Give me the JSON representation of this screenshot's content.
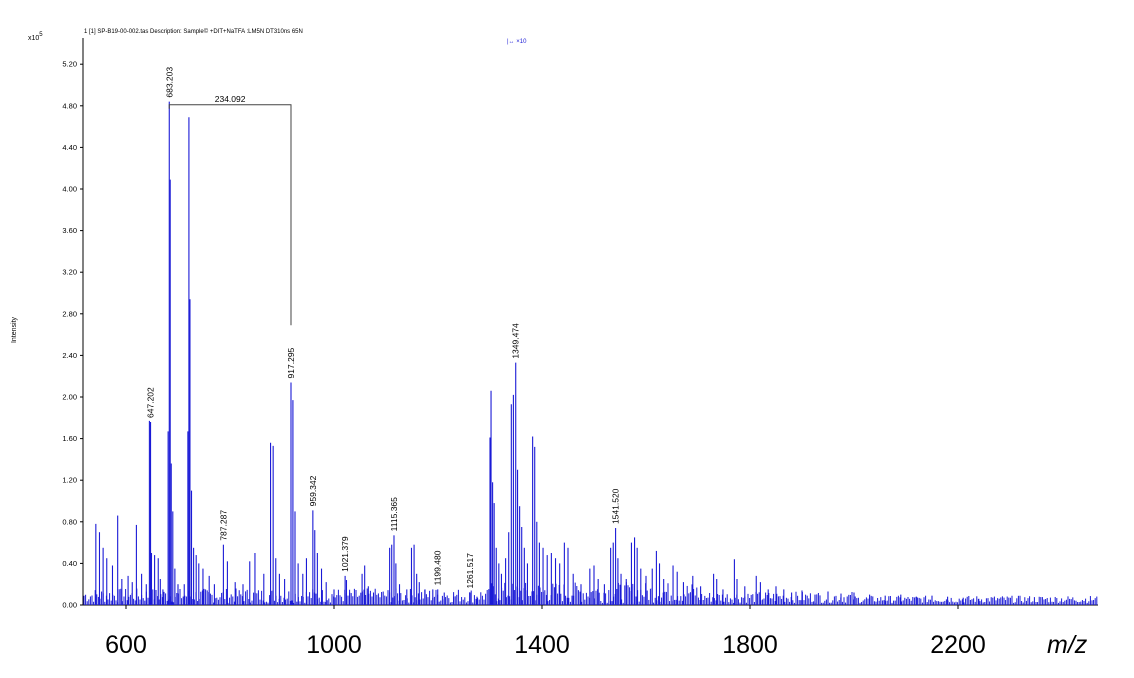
{
  "header": {
    "file_info": "1 [1] SP-B19-00-002.tas   Description: Sample© +DIT+NaTFA :LM5N DT310ns 65N",
    "scale_indicator": "|↔ ×10"
  },
  "chart_data": {
    "type": "line",
    "title": "",
    "xlabel": "m/z",
    "ylabel": "Intensity",
    "y_multiplier": "x10",
    "y_multiplier_exp": "5",
    "xlim": [
      540,
      2248
    ],
    "ylim": [
      0,
      5.4
    ],
    "x_ticks": [
      600,
      1000,
      1400,
      1800,
      2200
    ],
    "y_ticks": [
      "0.00",
      "0.40",
      "0.80",
      "1.20",
      "1.60",
      "2.00",
      "2.40",
      "2.80",
      "3.20",
      "3.60",
      "4.00",
      "4.40",
      "4.80",
      "5.20"
    ],
    "grid": false,
    "color": "#1a1ad6",
    "peaks": [
      {
        "x": 542,
        "y": 0.78
      },
      {
        "x": 549,
        "y": 0.7
      },
      {
        "x": 556,
        "y": 0.55
      },
      {
        "x": 563,
        "y": 0.45
      },
      {
        "x": 574,
        "y": 0.38
      },
      {
        "x": 584,
        "y": 0.86
      },
      {
        "x": 592,
        "y": 0.25
      },
      {
        "x": 604,
        "y": 0.28
      },
      {
        "x": 612,
        "y": 0.22
      },
      {
        "x": 620,
        "y": 0.77
      },
      {
        "x": 630,
        "y": 0.3
      },
      {
        "x": 639,
        "y": 0.2
      },
      {
        "x": 645,
        "y": 1.77
      },
      {
        "x": 647.202,
        "y": 1.76
      },
      {
        "x": 649,
        "y": 0.5
      },
      {
        "x": 655,
        "y": 0.48
      },
      {
        "x": 662,
        "y": 0.45
      },
      {
        "x": 666,
        "y": 0.25
      },
      {
        "x": 671,
        "y": 0.15
      },
      {
        "x": 681,
        "y": 1.67
      },
      {
        "x": 683.203,
        "y": 4.84
      },
      {
        "x": 685,
        "y": 4.09
      },
      {
        "x": 687,
        "y": 1.36
      },
      {
        "x": 690,
        "y": 0.9
      },
      {
        "x": 694,
        "y": 0.35
      },
      {
        "x": 700,
        "y": 0.2
      },
      {
        "x": 712,
        "y": 0.2
      },
      {
        "x": 719,
        "y": 1.67
      },
      {
        "x": 721,
        "y": 4.69
      },
      {
        "x": 723,
        "y": 2.94
      },
      {
        "x": 726,
        "y": 1.1
      },
      {
        "x": 730,
        "y": 0.55
      },
      {
        "x": 735,
        "y": 0.48
      },
      {
        "x": 740,
        "y": 0.4
      },
      {
        "x": 748,
        "y": 0.35
      },
      {
        "x": 760,
        "y": 0.28
      },
      {
        "x": 770,
        "y": 0.2
      },
      {
        "x": 787.287,
        "y": 0.58
      },
      {
        "x": 795,
        "y": 0.42
      },
      {
        "x": 810,
        "y": 0.22
      },
      {
        "x": 825,
        "y": 0.2
      },
      {
        "x": 838,
        "y": 0.42
      },
      {
        "x": 848,
        "y": 0.5
      },
      {
        "x": 865,
        "y": 0.3
      },
      {
        "x": 878,
        "y": 1.56
      },
      {
        "x": 883,
        "y": 1.53
      },
      {
        "x": 888,
        "y": 0.45
      },
      {
        "x": 895,
        "y": 0.3
      },
      {
        "x": 905,
        "y": 0.25
      },
      {
        "x": 917.295,
        "y": 2.14
      },
      {
        "x": 921,
        "y": 1.97
      },
      {
        "x": 925,
        "y": 0.9
      },
      {
        "x": 931,
        "y": 0.4
      },
      {
        "x": 940,
        "y": 0.3
      },
      {
        "x": 947,
        "y": 0.45
      },
      {
        "x": 959.342,
        "y": 0.91
      },
      {
        "x": 963,
        "y": 0.72
      },
      {
        "x": 968,
        "y": 0.5
      },
      {
        "x": 976,
        "y": 0.35
      },
      {
        "x": 985,
        "y": 0.22
      },
      {
        "x": 1000,
        "y": 0.15
      },
      {
        "x": 1021.379,
        "y": 0.28
      },
      {
        "x": 1024,
        "y": 0.24
      },
      {
        "x": 1030,
        "y": 0.12
      },
      {
        "x": 1054,
        "y": 0.3
      },
      {
        "x": 1059,
        "y": 0.38
      },
      {
        "x": 1066,
        "y": 0.18
      },
      {
        "x": 1076,
        "y": 0.12
      },
      {
        "x": 1107,
        "y": 0.55
      },
      {
        "x": 1111,
        "y": 0.58
      },
      {
        "x": 1115.365,
        "y": 0.67
      },
      {
        "x": 1119,
        "y": 0.4
      },
      {
        "x": 1126,
        "y": 0.2
      },
      {
        "x": 1140,
        "y": 0.15
      },
      {
        "x": 1149,
        "y": 0.55
      },
      {
        "x": 1154,
        "y": 0.58
      },
      {
        "x": 1159,
        "y": 0.3
      },
      {
        "x": 1164,
        "y": 0.22
      },
      {
        "x": 1175,
        "y": 0.15
      },
      {
        "x": 1190,
        "y": 0.15
      },
      {
        "x": 1199.48,
        "y": 0.15
      },
      {
        "x": 1212,
        "y": 0.12
      },
      {
        "x": 1230,
        "y": 0.08
      },
      {
        "x": 1261.517,
        "y": 0.12
      },
      {
        "x": 1275,
        "y": 0.08
      },
      {
        "x": 1300,
        "y": 1.61
      },
      {
        "x": 1302,
        "y": 2.06
      },
      {
        "x": 1305,
        "y": 1.18
      },
      {
        "x": 1308,
        "y": 0.98
      },
      {
        "x": 1312,
        "y": 0.55
      },
      {
        "x": 1317,
        "y": 0.4
      },
      {
        "x": 1322,
        "y": 0.3
      },
      {
        "x": 1330,
        "y": 0.45
      },
      {
        "x": 1336,
        "y": 0.7
      },
      {
        "x": 1341,
        "y": 1.93
      },
      {
        "x": 1345,
        "y": 2.02
      },
      {
        "x": 1349.474,
        "y": 2.33
      },
      {
        "x": 1353,
        "y": 1.3
      },
      {
        "x": 1357,
        "y": 0.95
      },
      {
        "x": 1361,
        "y": 0.75
      },
      {
        "x": 1366,
        "y": 0.55
      },
      {
        "x": 1372,
        "y": 0.4
      },
      {
        "x": 1382,
        "y": 1.62
      },
      {
        "x": 1386,
        "y": 1.52
      },
      {
        "x": 1390,
        "y": 0.8
      },
      {
        "x": 1395,
        "y": 0.6
      },
      {
        "x": 1402,
        "y": 0.55
      },
      {
        "x": 1410,
        "y": 0.48
      },
      {
        "x": 1418,
        "y": 0.5
      },
      {
        "x": 1426,
        "y": 0.45
      },
      {
        "x": 1434,
        "y": 0.4
      },
      {
        "x": 1443,
        "y": 0.6
      },
      {
        "x": 1450,
        "y": 0.55
      },
      {
        "x": 1460,
        "y": 0.3
      },
      {
        "x": 1475,
        "y": 0.2
      },
      {
        "x": 1492,
        "y": 0.35
      },
      {
        "x": 1500,
        "y": 0.38
      },
      {
        "x": 1508,
        "y": 0.25
      },
      {
        "x": 1520,
        "y": 0.2
      },
      {
        "x": 1532,
        "y": 0.55
      },
      {
        "x": 1537,
        "y": 0.6
      },
      {
        "x": 1541.52,
        "y": 0.74
      },
      {
        "x": 1546,
        "y": 0.45
      },
      {
        "x": 1552,
        "y": 0.3
      },
      {
        "x": 1562,
        "y": 0.25
      },
      {
        "x": 1572,
        "y": 0.6
      },
      {
        "x": 1578,
        "y": 0.65
      },
      {
        "x": 1583,
        "y": 0.55
      },
      {
        "x": 1590,
        "y": 0.35
      },
      {
        "x": 1600,
        "y": 0.28
      },
      {
        "x": 1612,
        "y": 0.35
      },
      {
        "x": 1620,
        "y": 0.52
      },
      {
        "x": 1626,
        "y": 0.4
      },
      {
        "x": 1634,
        "y": 0.25
      },
      {
        "x": 1652,
        "y": 0.38
      },
      {
        "x": 1660,
        "y": 0.32
      },
      {
        "x": 1672,
        "y": 0.22
      },
      {
        "x": 1690,
        "y": 0.28
      },
      {
        "x": 1705,
        "y": 0.18
      },
      {
        "x": 1730,
        "y": 0.3
      },
      {
        "x": 1736,
        "y": 0.25
      },
      {
        "x": 1748,
        "y": 0.15
      },
      {
        "x": 1770,
        "y": 0.44
      },
      {
        "x": 1775,
        "y": 0.25
      },
      {
        "x": 1790,
        "y": 0.18
      },
      {
        "x": 1812,
        "y": 0.28
      },
      {
        "x": 1820,
        "y": 0.22
      },
      {
        "x": 1835,
        "y": 0.15
      },
      {
        "x": 1850,
        "y": 0.18
      },
      {
        "x": 1865,
        "y": 0.15
      },
      {
        "x": 1880,
        "y": 0.12
      },
      {
        "x": 1900,
        "y": 0.14
      },
      {
        "x": 1925,
        "y": 0.1
      },
      {
        "x": 1950,
        "y": 0.13
      },
      {
        "x": 1975,
        "y": 0.11
      },
      {
        "x": 2000,
        "y": 0.12
      },
      {
        "x": 2030,
        "y": 0.1
      },
      {
        "x": 2060,
        "y": 0.09
      },
      {
        "x": 2090,
        "y": 0.1
      },
      {
        "x": 2120,
        "y": 0.08
      },
      {
        "x": 2150,
        "y": 0.09
      },
      {
        "x": 2180,
        "y": 0.08
      },
      {
        "x": 2210,
        "y": 0.07
      },
      {
        "x": 2240,
        "y": 0.06
      }
    ],
    "peak_labels": [
      {
        "x": 647.202,
        "y": 1.76,
        "text": "647.202"
      },
      {
        "x": 683.203,
        "y": 4.84,
        "text": "683.203"
      },
      {
        "x": 787.287,
        "y": 0.58,
        "text": "787.287"
      },
      {
        "x": 917.295,
        "y": 2.14,
        "text": "917.295"
      },
      {
        "x": 959.342,
        "y": 0.91,
        "text": "959.342"
      },
      {
        "x": 1021.379,
        "y": 0.28,
        "text": "1021.379"
      },
      {
        "x": 1115.365,
        "y": 0.67,
        "text": "1115.365"
      },
      {
        "x": 1199.48,
        "y": 0.15,
        "text": "1199.480"
      },
      {
        "x": 1261.517,
        "y": 0.12,
        "text": "1261.517"
      },
      {
        "x": 1349.474,
        "y": 2.33,
        "text": "1349.474"
      },
      {
        "x": 1541.52,
        "y": 0.74,
        "text": "1541.520"
      }
    ],
    "annotations": [
      {
        "type": "bracket",
        "x1": 683.203,
        "x2": 917.295,
        "y_top": 4.81,
        "y_right_end": 2.69,
        "text": "234.092"
      }
    ]
  }
}
